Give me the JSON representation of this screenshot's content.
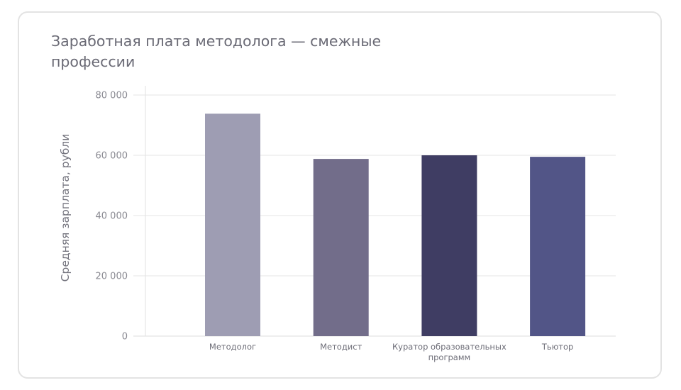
{
  "chart_data": {
    "type": "bar",
    "title": "Заработная плата методолога — смежные профессии",
    "xlabel": "",
    "ylabel": "Средняя зарплата, рубли",
    "ylim": [
      0,
      80000
    ],
    "yticks": [
      0,
      20000,
      40000,
      60000,
      80000
    ],
    "ytick_labels": [
      "0",
      "20 000",
      "40 000",
      "60 000",
      "80 000"
    ],
    "grid": true,
    "categories": [
      "Методолог",
      "Методист",
      "Куратор образовательных программ",
      "Тьютор"
    ],
    "category_label_lines": [
      [
        "Методолог"
      ],
      [
        "Методист"
      ],
      [
        "Куратор образовательных",
        "программ"
      ],
      [
        "Тьютор"
      ]
    ],
    "values": [
      73800,
      58800,
      60000,
      59500
    ],
    "colors": [
      "#9e9db3",
      "#726d8a",
      "#3f3d63",
      "#525587"
    ]
  }
}
